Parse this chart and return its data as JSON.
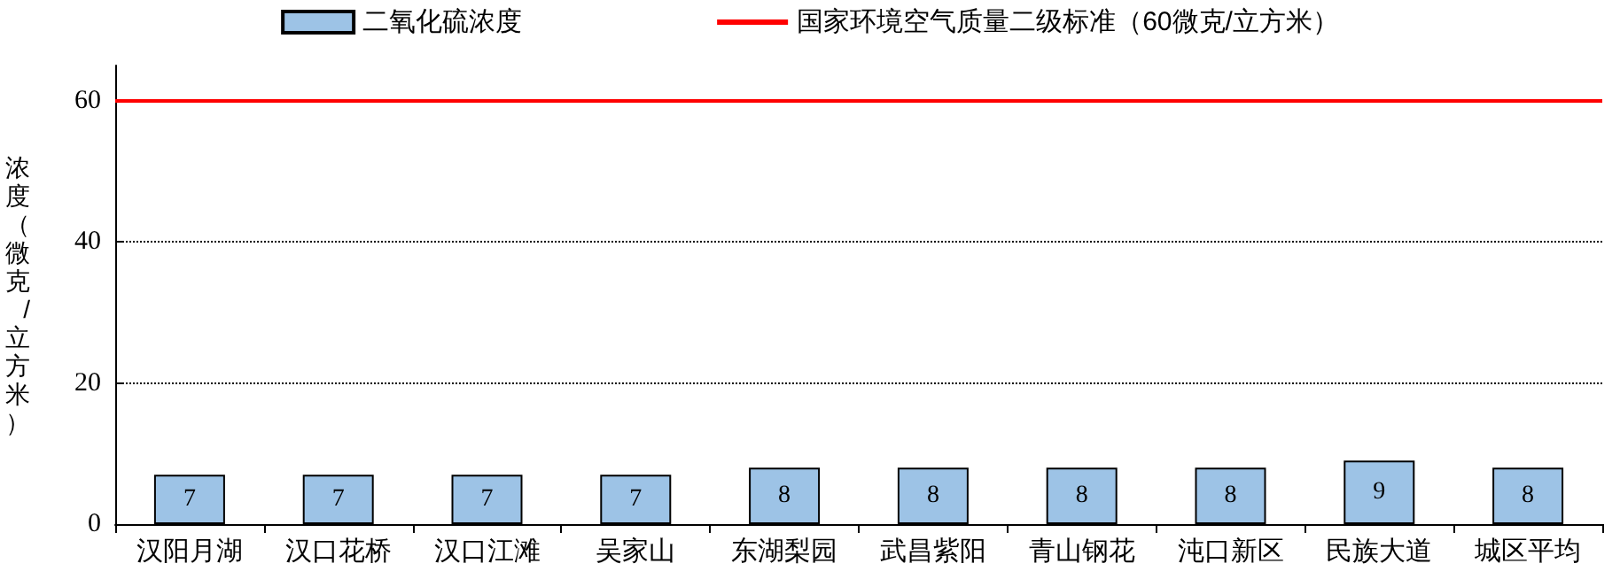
{
  "chart_data": {
    "type": "bar",
    "ylabel": "浓度（微克/立方米）",
    "categories": [
      "汉阳月湖",
      "汉口花桥",
      "汉口江滩",
      "吴家山",
      "东湖梨园",
      "武昌紫阳",
      "青山钢花",
      "沌口新区",
      "民族大道",
      "城区平均"
    ],
    "series": [
      {
        "name": "二氧化硫浓度",
        "color": "#9dc3e6",
        "values": [
          7,
          7,
          7,
          7,
          8,
          8,
          8,
          8,
          9,
          8
        ]
      }
    ],
    "data_labels": true,
    "ylim": [
      0,
      65
    ],
    "yticks": [
      0,
      20,
      40,
      60
    ],
    "grid": "y",
    "legend": "top",
    "ref_lines": [
      {
        "axis": "y",
        "value": 60,
        "label": "国家环境空气质量二级标准（60微克/立方米）",
        "color": "#ff0000",
        "line_style": "solid"
      }
    ]
  }
}
